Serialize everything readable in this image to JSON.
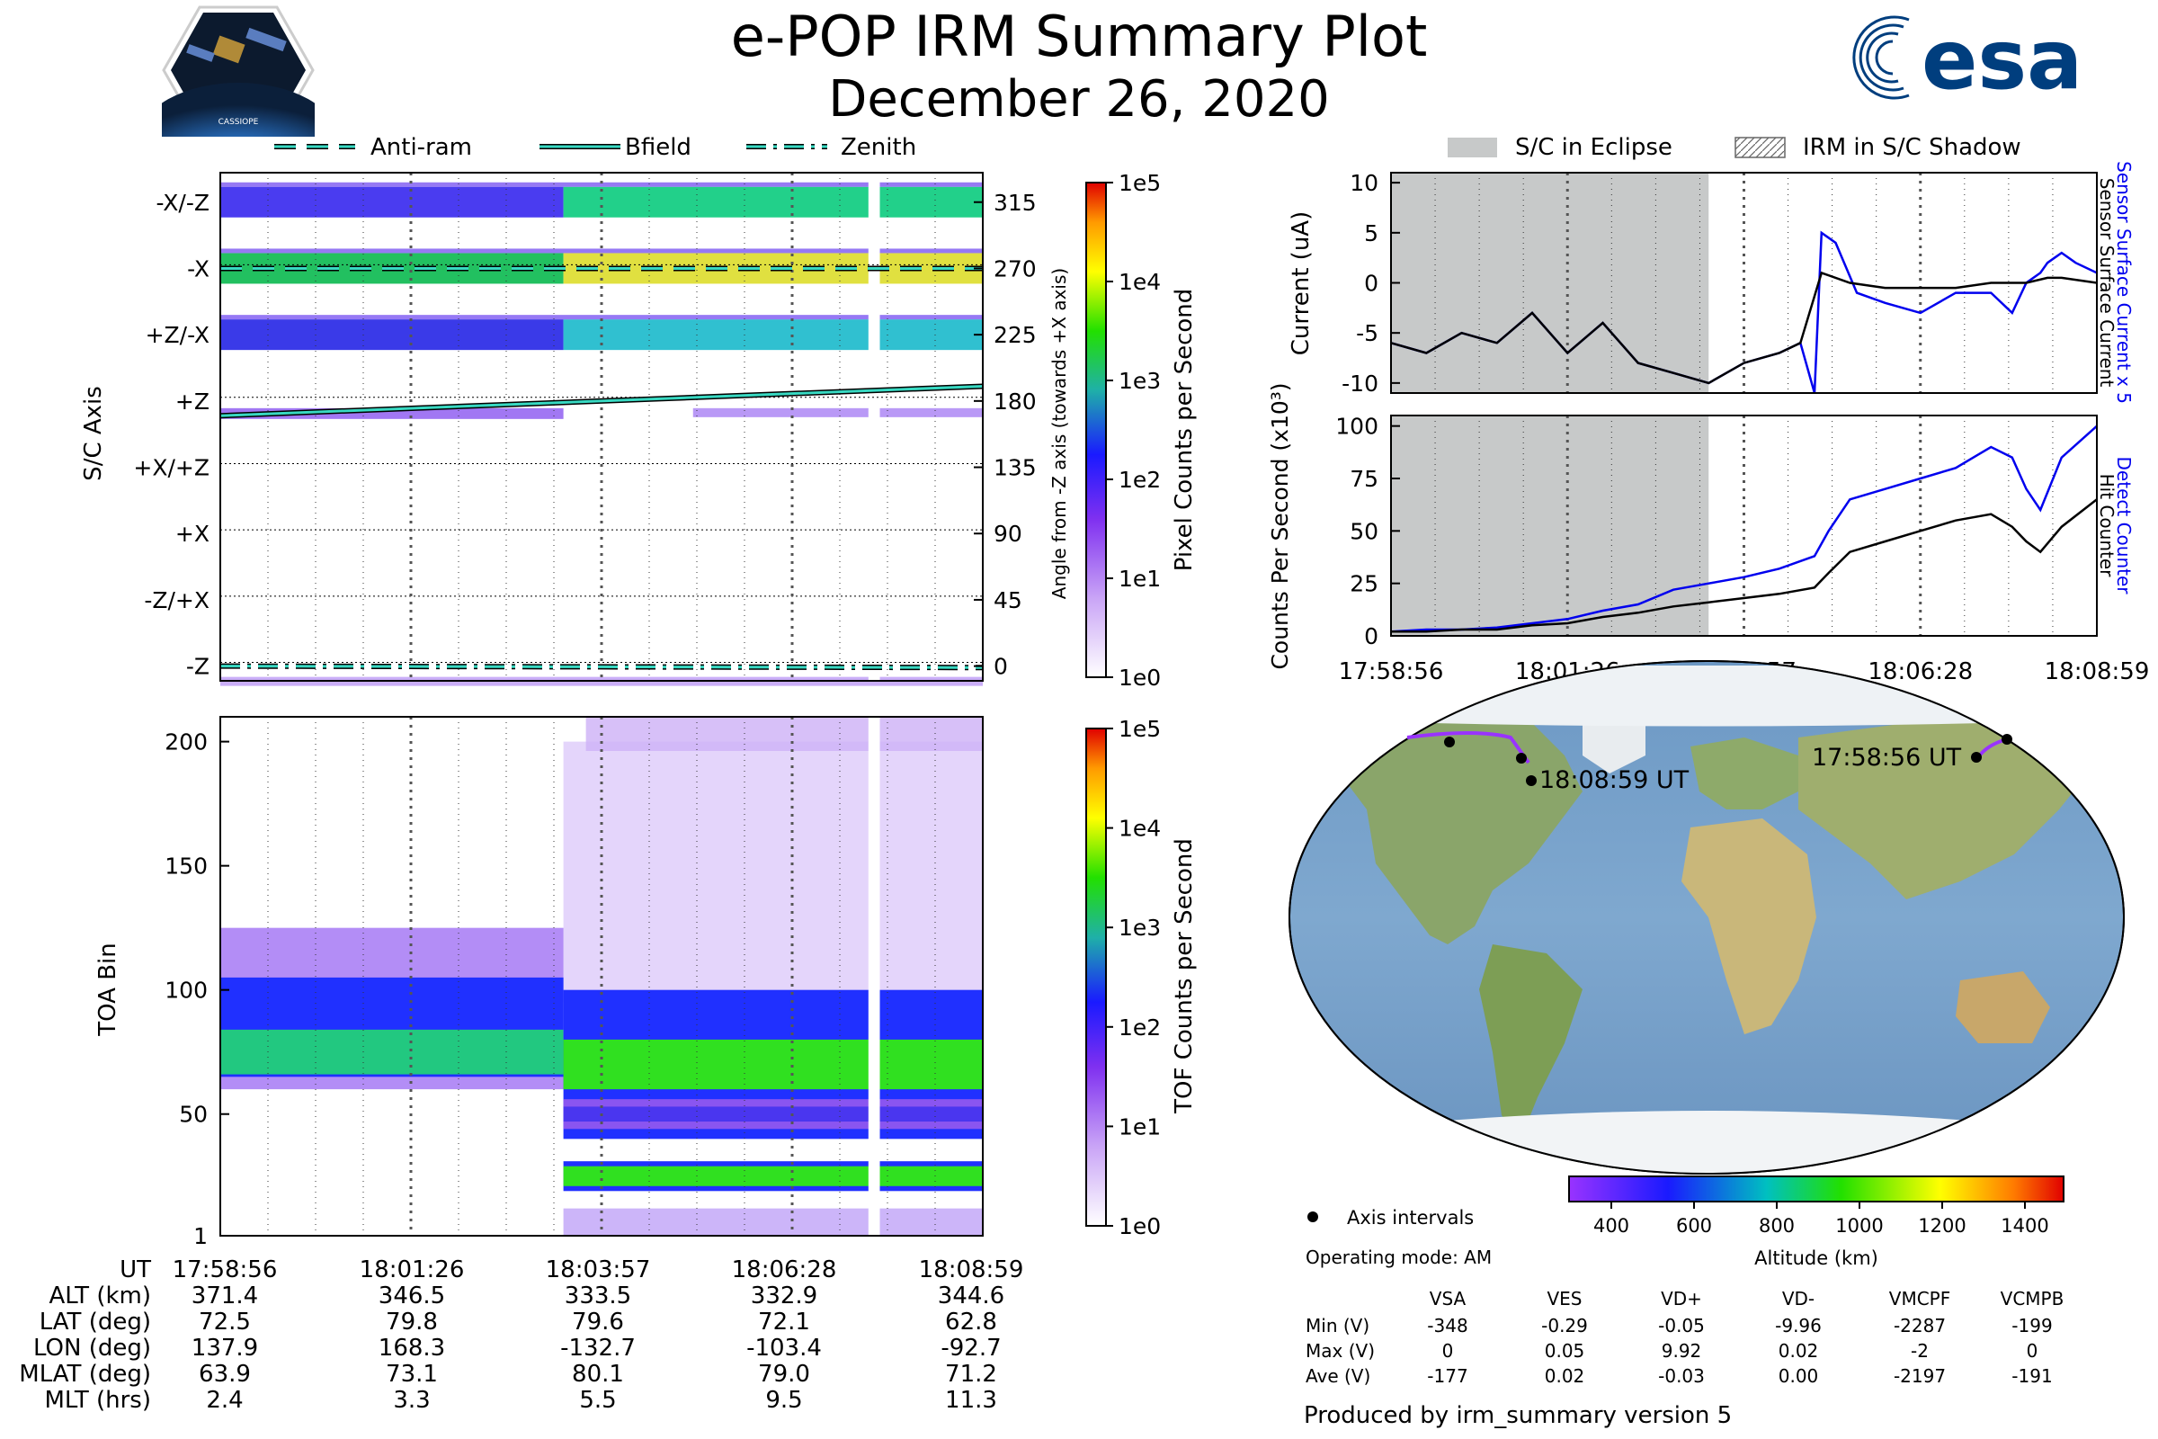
{
  "header": {
    "title": "e-POP IRM Summary Plot",
    "date": "December 26, 2020",
    "mission_logo_text": "CASSIOPE",
    "agency_logo_text": "esa"
  },
  "colors": {
    "eclipse": "#c7c9c9",
    "bfield_line": "#000000",
    "track": "#9933ff",
    "sensor_current": "#0000ee",
    "detect_counter": "#0000ee"
  },
  "chart_data": [
    {
      "id": "pixel",
      "type": "heatmap",
      "ylabel": "S/C Axis",
      "ylabel_right": "Angle from -Z axis (towards +X axis)",
      "y_axis_labels": [
        "-X/-Z",
        "-X",
        "+Z/-X",
        "+Z",
        "+X/+Z",
        "+X",
        "-Z/+X",
        "-Z"
      ],
      "y_axis_angles": [
        315,
        270,
        225,
        180,
        135,
        90,
        45,
        0
      ],
      "ylim": [
        -10,
        335
      ],
      "legend": {
        "position": "top",
        "entries": [
          {
            "label": "Anti-ram",
            "style": "dashed"
          },
          {
            "label": "Bfield",
            "style": "solid"
          },
          {
            "label": "Zenith",
            "style": "dashdot"
          }
        ]
      },
      "lines": {
        "Anti-ram": {
          "start": 270,
          "end": 270
        },
        "Bfield": {
          "start": 170,
          "end": 190
        },
        "Zenith": {
          "start": 0,
          "end": -1
        }
      },
      "colorbar": {
        "label": "Pixel Counts per Second",
        "ticks": [
          "1e5",
          "1e4",
          "1e3",
          "1e2",
          "1e1",
          "1e0"
        ]
      }
    },
    {
      "id": "tof",
      "type": "heatmap",
      "ylabel": "TOA Bin",
      "yticks": [
        1,
        50,
        100,
        150,
        200
      ],
      "ylim": [
        1,
        210
      ],
      "bands_before": [
        {
          "center": 75,
          "width": 18
        }
      ],
      "bands_after": [
        {
          "center": 70,
          "width": 20
        },
        {
          "center": 50,
          "width": 6
        },
        {
          "center": 25,
          "width": 8
        }
      ],
      "colorbar": {
        "label": "TOF Counts per Second",
        "ticks": [
          "1e5",
          "1e4",
          "1e3",
          "1e2",
          "1e1",
          "1e0"
        ]
      }
    },
    {
      "id": "current",
      "type": "line",
      "ylabel": "Current (uA)",
      "yticks": [
        10,
        5,
        0,
        -5,
        -10
      ],
      "ylim": [
        -11,
        11
      ],
      "series": [
        {
          "name": "Sensor Surface Current x 5",
          "points": [
            [
              0,
              -6
            ],
            [
              0.05,
              -7
            ],
            [
              0.1,
              -5
            ],
            [
              0.15,
              -6
            ],
            [
              0.2,
              -3
            ],
            [
              0.25,
              -7
            ],
            [
              0.3,
              -4
            ],
            [
              0.35,
              -8
            ],
            [
              0.4,
              -9
            ],
            [
              0.45,
              -10
            ],
            [
              0.5,
              -8
            ],
            [
              0.55,
              -7
            ],
            [
              0.58,
              -6
            ],
            [
              0.6,
              -11
            ],
            [
              0.61,
              5
            ],
            [
              0.63,
              4
            ],
            [
              0.66,
              -1
            ],
            [
              0.7,
              -2
            ],
            [
              0.75,
              -3
            ],
            [
              0.8,
              -1
            ],
            [
              0.85,
              -1
            ],
            [
              0.88,
              -3
            ],
            [
              0.9,
              0
            ],
            [
              0.92,
              1
            ],
            [
              0.93,
              2
            ],
            [
              0.95,
              3
            ],
            [
              0.97,
              2
            ],
            [
              1,
              1
            ]
          ]
        },
        {
          "name": "Sensor Surface Current",
          "points": [
            [
              0,
              -6
            ],
            [
              0.05,
              -7
            ],
            [
              0.1,
              -5
            ],
            [
              0.15,
              -6
            ],
            [
              0.2,
              -3
            ],
            [
              0.25,
              -7
            ],
            [
              0.3,
              -4
            ],
            [
              0.35,
              -8
            ],
            [
              0.4,
              -9
            ],
            [
              0.45,
              -10
            ],
            [
              0.5,
              -8
            ],
            [
              0.55,
              -7
            ],
            [
              0.58,
              -6
            ],
            [
              0.61,
              1
            ],
            [
              0.65,
              0
            ],
            [
              0.7,
              -0.5
            ],
            [
              0.75,
              -0.5
            ],
            [
              0.8,
              -0.5
            ],
            [
              0.85,
              0
            ],
            [
              0.9,
              0
            ],
            [
              0.93,
              0.5
            ],
            [
              0.95,
              0.5
            ],
            [
              1,
              0
            ]
          ]
        }
      ]
    },
    {
      "id": "counts",
      "type": "line",
      "ylabel": "Counts Per Second (x10³)",
      "yticks": [
        100,
        75,
        50,
        25,
        0
      ],
      "ylim": [
        0,
        105
      ],
      "series": [
        {
          "name": "Detect Counter",
          "points": [
            [
              0,
              2
            ],
            [
              0.05,
              3
            ],
            [
              0.1,
              3
            ],
            [
              0.15,
              4
            ],
            [
              0.2,
              6
            ],
            [
              0.25,
              8
            ],
            [
              0.3,
              12
            ],
            [
              0.35,
              15
            ],
            [
              0.4,
              22
            ],
            [
              0.45,
              25
            ],
            [
              0.5,
              28
            ],
            [
              0.55,
              32
            ],
            [
              0.6,
              38
            ],
            [
              0.62,
              50
            ],
            [
              0.65,
              65
            ],
            [
              0.7,
              70
            ],
            [
              0.75,
              75
            ],
            [
              0.8,
              80
            ],
            [
              0.85,
              90
            ],
            [
              0.88,
              85
            ],
            [
              0.9,
              70
            ],
            [
              0.92,
              60
            ],
            [
              0.95,
              85
            ],
            [
              1,
              100
            ]
          ]
        },
        {
          "name": "Hit Counter",
          "points": [
            [
              0,
              2
            ],
            [
              0.05,
              2
            ],
            [
              0.1,
              3
            ],
            [
              0.15,
              3
            ],
            [
              0.2,
              5
            ],
            [
              0.25,
              6
            ],
            [
              0.3,
              9
            ],
            [
              0.35,
              11
            ],
            [
              0.4,
              14
            ],
            [
              0.45,
              16
            ],
            [
              0.5,
              18
            ],
            [
              0.55,
              20
            ],
            [
              0.6,
              23
            ],
            [
              0.62,
              30
            ],
            [
              0.65,
              40
            ],
            [
              0.7,
              45
            ],
            [
              0.75,
              50
            ],
            [
              0.8,
              55
            ],
            [
              0.85,
              58
            ],
            [
              0.88,
              52
            ],
            [
              0.9,
              45
            ],
            [
              0.92,
              40
            ],
            [
              0.95,
              52
            ],
            [
              1,
              65
            ]
          ]
        }
      ]
    }
  ],
  "time_axis": {
    "labels": [
      "17:58:56",
      "18:01:26",
      "18:03:57",
      "18:06:28",
      "18:08:59"
    ],
    "data_gap_fraction": [
      0.85,
      0.875
    ],
    "eclipse_fraction": [
      0,
      0.45
    ]
  },
  "eclipse_legend": {
    "eclipse": "S/C in Eclipse",
    "shadow": "IRM in S/C Shadow"
  },
  "ephemeris": {
    "rows": [
      {
        "label": "UT",
        "values": [
          "17:58:56",
          "18:01:26",
          "18:03:57",
          "18:06:28",
          "18:08:59"
        ]
      },
      {
        "label": "ALT (km)",
        "values": [
          "371.4",
          "346.5",
          "333.5",
          "332.9",
          "344.6"
        ]
      },
      {
        "label": "LAT (deg)",
        "values": [
          "72.5",
          "79.8",
          "79.6",
          "72.1",
          "62.8"
        ]
      },
      {
        "label": "LON (deg)",
        "values": [
          "137.9",
          "168.3",
          "-132.7",
          "-103.4",
          "-92.7"
        ]
      },
      {
        "label": "MLAT (deg)",
        "values": [
          "63.9",
          "73.1",
          "80.1",
          "79.0",
          "71.2"
        ]
      },
      {
        "label": "MLT (hrs)",
        "values": [
          "2.4",
          "3.3",
          "5.5",
          "9.5",
          "11.3"
        ]
      }
    ]
  },
  "map": {
    "start_label": "17:58:56 UT",
    "end_label": "18:08:59 UT",
    "legend_label": "Axis intervals",
    "altitude_colorbar": {
      "label": "Altitude (km)",
      "ticks": [
        "400",
        "600",
        "800",
        "1000",
        "1200",
        "1400"
      ]
    }
  },
  "summary": {
    "mode": "Operating mode: AM",
    "headers": [
      "VSA",
      "VES",
      "VD+",
      "VD-",
      "VMCPF",
      "VCMPB"
    ],
    "rows": [
      {
        "label": "Min (V)",
        "values": [
          "-348",
          "-0.29",
          "-0.05",
          "-9.96",
          "-2287",
          "-199"
        ]
      },
      {
        "label": "Max (V)",
        "values": [
          "0",
          "0.05",
          "9.92",
          "0.02",
          "-2",
          "0"
        ]
      },
      {
        "label": "Ave (V)",
        "values": [
          "-177",
          "0.02",
          "-0.03",
          "0.00",
          "-2197",
          "-191"
        ]
      }
    ],
    "footer": "Produced by irm_summary version 5"
  }
}
